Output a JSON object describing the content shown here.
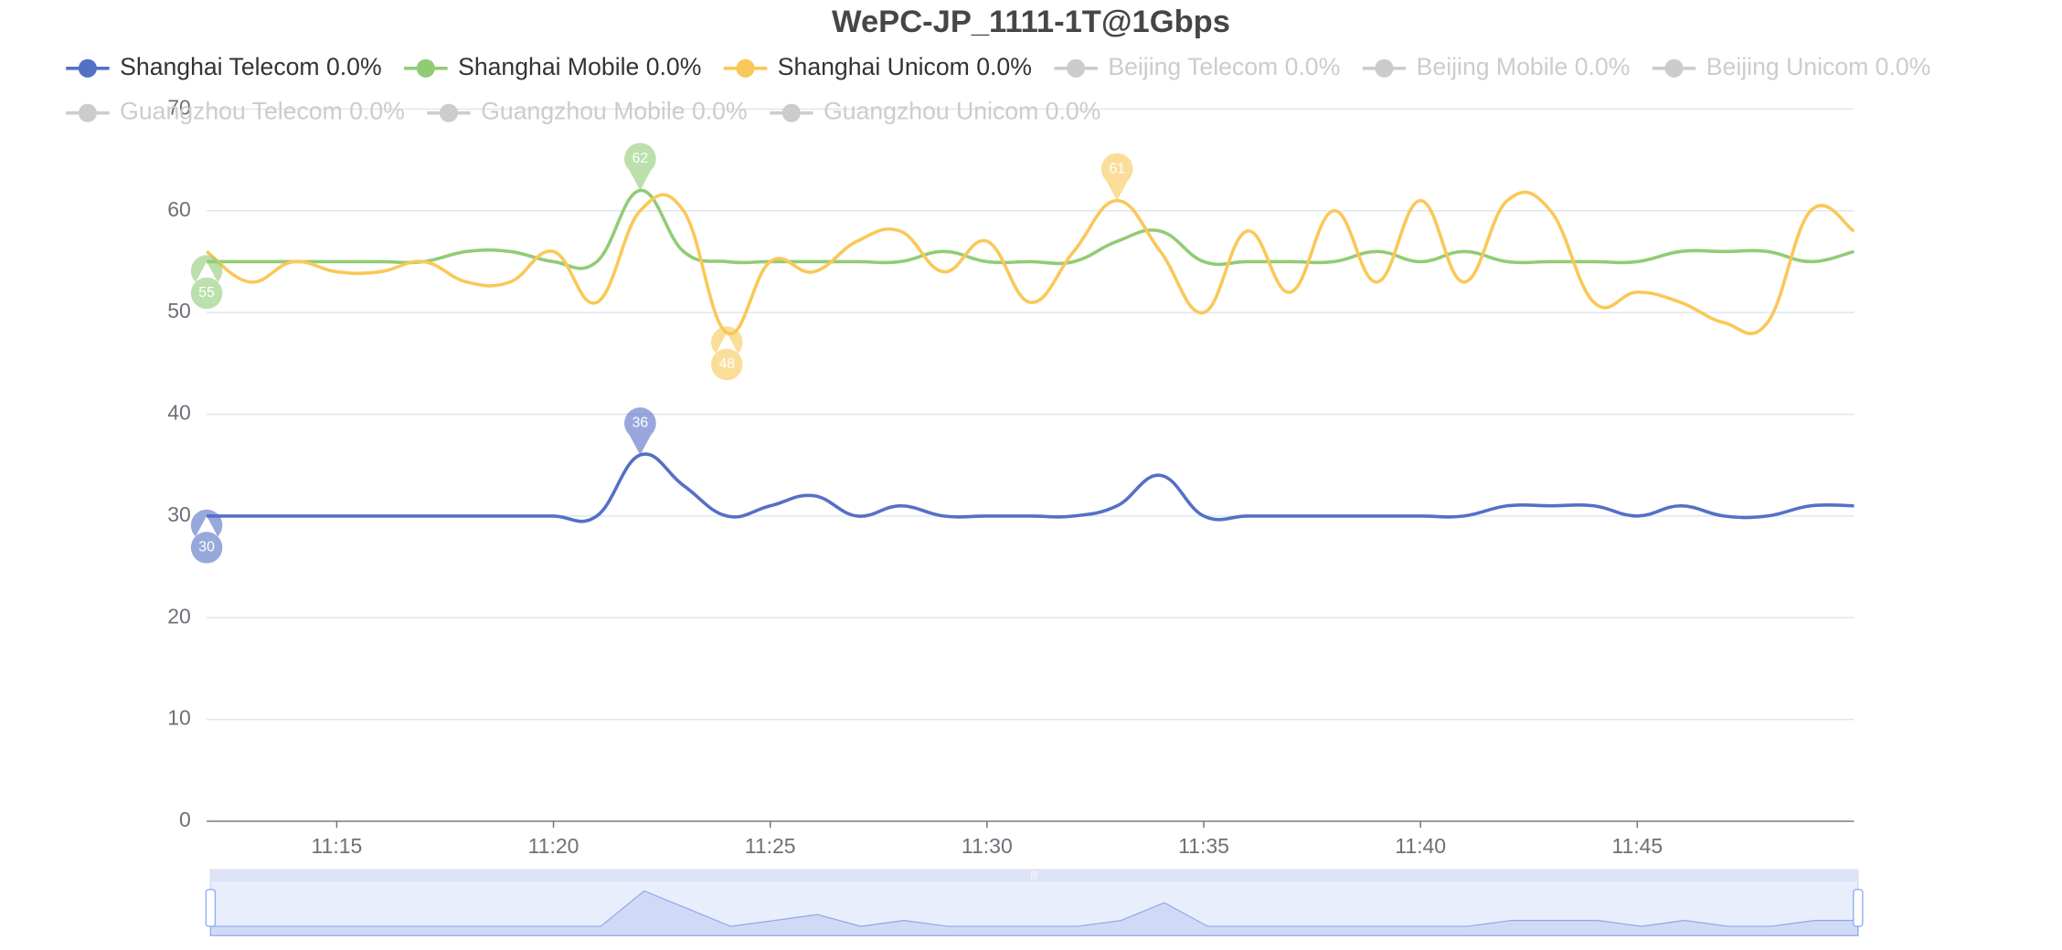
{
  "chart_data": {
    "type": "line",
    "title": "WePC-JP_1111-1T@1Gbps",
    "x": [
      "11:12",
      "11:13",
      "11:14",
      "11:15",
      "11:16",
      "11:17",
      "11:18",
      "11:19",
      "11:20",
      "11:21",
      "11:22",
      "11:23",
      "11:24",
      "11:25",
      "11:26",
      "11:27",
      "11:28",
      "11:29",
      "11:30",
      "11:31",
      "11:32",
      "11:33",
      "11:34",
      "11:35",
      "11:36",
      "11:37",
      "11:38",
      "11:39",
      "11:40",
      "11:41",
      "11:42",
      "11:43",
      "11:44",
      "11:45",
      "11:46",
      "11:47",
      "11:48",
      "11:49",
      "11:50"
    ],
    "xticks": [
      "11:15",
      "11:20",
      "11:25",
      "11:30",
      "11:35",
      "11:40",
      "11:45"
    ],
    "ylim": [
      0,
      70
    ],
    "yticks": [
      0,
      10,
      20,
      30,
      40,
      50,
      60,
      70
    ],
    "grid": true,
    "series": [
      {
        "name": "Shanghai Telecom 0.0%",
        "color": "#5470c6",
        "values": [
          30,
          30,
          30,
          30,
          30,
          30,
          30,
          30,
          30,
          30,
          36,
          33,
          30,
          31,
          32,
          30,
          31,
          30,
          30,
          30,
          30,
          31,
          34,
          30,
          30,
          30,
          30,
          30,
          30,
          30,
          31,
          31,
          31,
          30,
          31,
          30,
          30,
          31,
          31
        ]
      },
      {
        "name": "Shanghai Mobile 0.0%",
        "color": "#91cc75",
        "values": [
          55,
          55,
          55,
          55,
          55,
          55,
          56,
          56,
          55,
          55,
          62,
          56,
          55,
          55,
          55,
          55,
          55,
          56,
          55,
          55,
          55,
          57,
          58,
          55,
          55,
          55,
          55,
          56,
          55,
          56,
          55,
          55,
          55,
          55,
          56,
          56,
          56,
          55,
          56
        ]
      },
      {
        "name": "Shanghai Unicom 0.0%",
        "color": "#fac858",
        "values": [
          56,
          53,
          55,
          54,
          54,
          55,
          53,
          53,
          56,
          51,
          60,
          60,
          48,
          55,
          54,
          57,
          58,
          54,
          57,
          51,
          56,
          61,
          56,
          50,
          58,
          52,
          60,
          53,
          61,
          53,
          61,
          60,
          51,
          52,
          51,
          49,
          49,
          60,
          58
        ]
      }
    ],
    "inactive_legend": [
      "Beijing Telecom 0.0%",
      "Beijing Mobile 0.0%",
      "Beijing Unicom 0.0%",
      "Guangzhou Telecom 0.0%",
      "Guangzhou Mobile 0.0%",
      "Guangzhou Unicom 0.0%"
    ],
    "inactive_color": "#cccccc"
  }
}
